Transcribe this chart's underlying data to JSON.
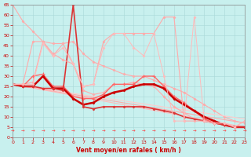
{
  "xlabel": "Vent moyen/en rafales ( km/h )",
  "xlim": [
    0,
    23
  ],
  "ylim": [
    0,
    65
  ],
  "yticks": [
    0,
    5,
    10,
    15,
    20,
    25,
    30,
    35,
    40,
    45,
    50,
    55,
    60,
    65
  ],
  "xticks": [
    0,
    1,
    2,
    3,
    4,
    5,
    6,
    7,
    8,
    9,
    10,
    11,
    12,
    13,
    14,
    15,
    16,
    17,
    18,
    19,
    20,
    21,
    22,
    23
  ],
  "background_color": "#c8f0ee",
  "grid_color": "#a8d8d8",
  "lines": [
    {
      "x": [
        0,
        1,
        2,
        3,
        4,
        5,
        6,
        7,
        8,
        9,
        10,
        11,
        12,
        13,
        14,
        15,
        16,
        17,
        18,
        19,
        20,
        21,
        22,
        23
      ],
      "y": [
        65,
        57,
        52,
        47,
        46,
        46,
        47,
        41,
        37,
        35,
        33,
        31,
        30,
        30,
        28,
        26,
        24,
        22,
        19,
        16,
        13,
        10,
        8,
        7
      ],
      "color": "#ffaaaa",
      "lw": 0.8,
      "marker": "D",
      "ms": 1.5,
      "mew": 0.5
    },
    {
      "x": [
        0,
        23
      ],
      "y": [
        26,
        5
      ],
      "color": "#ffbbbb",
      "lw": 0.8,
      "marker": null,
      "ms": 0,
      "mew": 0
    },
    {
      "x": [
        0,
        23
      ],
      "y": [
        26,
        7
      ],
      "color": "#ffaaaa",
      "lw": 0.8,
      "marker": null,
      "ms": 0,
      "mew": 0
    },
    {
      "x": [
        0,
        23
      ],
      "y": [
        26,
        9
      ],
      "color": "#ffcccc",
      "lw": 0.8,
      "marker": null,
      "ms": 0,
      "mew": 0
    },
    {
      "x": [
        0,
        1,
        2,
        3,
        4,
        5,
        6,
        7,
        8,
        9,
        10,
        11,
        12,
        13,
        14,
        15,
        16,
        17,
        18,
        19,
        20,
        21,
        22,
        23
      ],
      "y": [
        26,
        26,
        27,
        47,
        40,
        46,
        36,
        23,
        21,
        22,
        26,
        26,
        27,
        26,
        25,
        20,
        15,
        12,
        9,
        8,
        7,
        6,
        5,
        5
      ],
      "color": "#ffaaaa",
      "lw": 0.8,
      "marker": "D",
      "ms": 1.5,
      "mew": 0.5
    },
    {
      "x": [
        0,
        1,
        2,
        3,
        4,
        5,
        6,
        7,
        8,
        9,
        10,
        11,
        12,
        13,
        14,
        15,
        16,
        17,
        18,
        19,
        20,
        21,
        22,
        23
      ],
      "y": [
        26,
        25,
        30,
        31,
        25,
        25,
        20,
        19,
        19,
        21,
        26,
        26,
        26,
        30,
        30,
        25,
        20,
        17,
        13,
        9,
        7,
        6,
        5,
        5
      ],
      "color": "#ff6666",
      "lw": 1.0,
      "marker": "+",
      "ms": 3,
      "mew": 0.8
    },
    {
      "x": [
        0,
        1,
        2,
        3,
        4,
        5,
        6,
        7,
        8,
        9,
        10,
        11,
        12,
        13,
        14,
        15,
        16,
        17,
        18,
        19,
        20,
        21,
        22,
        23
      ],
      "y": [
        26,
        25,
        25,
        30,
        24,
        24,
        19,
        16,
        17,
        20,
        22,
        23,
        25,
        26,
        26,
        24,
        19,
        16,
        13,
        10,
        8,
        6,
        5,
        5
      ],
      "color": "#cc0000",
      "lw": 1.8,
      "marker": "D",
      "ms": 1.5,
      "mew": 0.5
    },
    {
      "x": [
        0,
        1,
        2,
        3,
        4,
        5,
        6,
        7,
        8,
        9,
        10,
        11,
        12,
        13,
        14,
        15,
        16,
        17,
        18,
        19,
        20,
        21,
        22,
        23
      ],
      "y": [
        26,
        25,
        25,
        24,
        24,
        23,
        65,
        15,
        14,
        15,
        15,
        15,
        15,
        15,
        14,
        13,
        12,
        10,
        9,
        8,
        7,
        6,
        5,
        5
      ],
      "color": "#dd3333",
      "lw": 1.2,
      "marker": "D",
      "ms": 1.5,
      "mew": 0.5
    },
    {
      "x": [
        0,
        1,
        2,
        3,
        4,
        5,
        6,
        7,
        8,
        9,
        10,
        11,
        12,
        13,
        14,
        15,
        16,
        17,
        18,
        19,
        20,
        21,
        22,
        23
      ],
      "y": [
        26,
        26,
        47,
        47,
        41,
        38,
        36,
        25,
        26,
        47,
        51,
        51,
        51,
        51,
        51,
        59,
        59,
        8,
        8,
        8,
        7,
        7,
        5,
        8
      ],
      "color": "#ffaaaa",
      "lw": 0.8,
      "marker": "D",
      "ms": 1.5,
      "mew": 0.5
    },
    {
      "x": [
        0,
        1,
        2,
        3,
        4,
        5,
        6,
        7,
        8,
        9,
        10,
        11,
        12,
        13,
        14,
        15,
        16,
        17,
        18,
        19,
        20,
        21,
        22,
        23
      ],
      "y": [
        26,
        26,
        26,
        46,
        40,
        44,
        36,
        25,
        26,
        44,
        51,
        51,
        44,
        40,
        51,
        30,
        8,
        8,
        59,
        8,
        7,
        7,
        5,
        8
      ],
      "color": "#ffbbbb",
      "lw": 0.7,
      "marker": "D",
      "ms": 1.5,
      "mew": 0.5
    }
  ],
  "tick_color": "#cc0000",
  "xlabel_color": "#cc0000"
}
